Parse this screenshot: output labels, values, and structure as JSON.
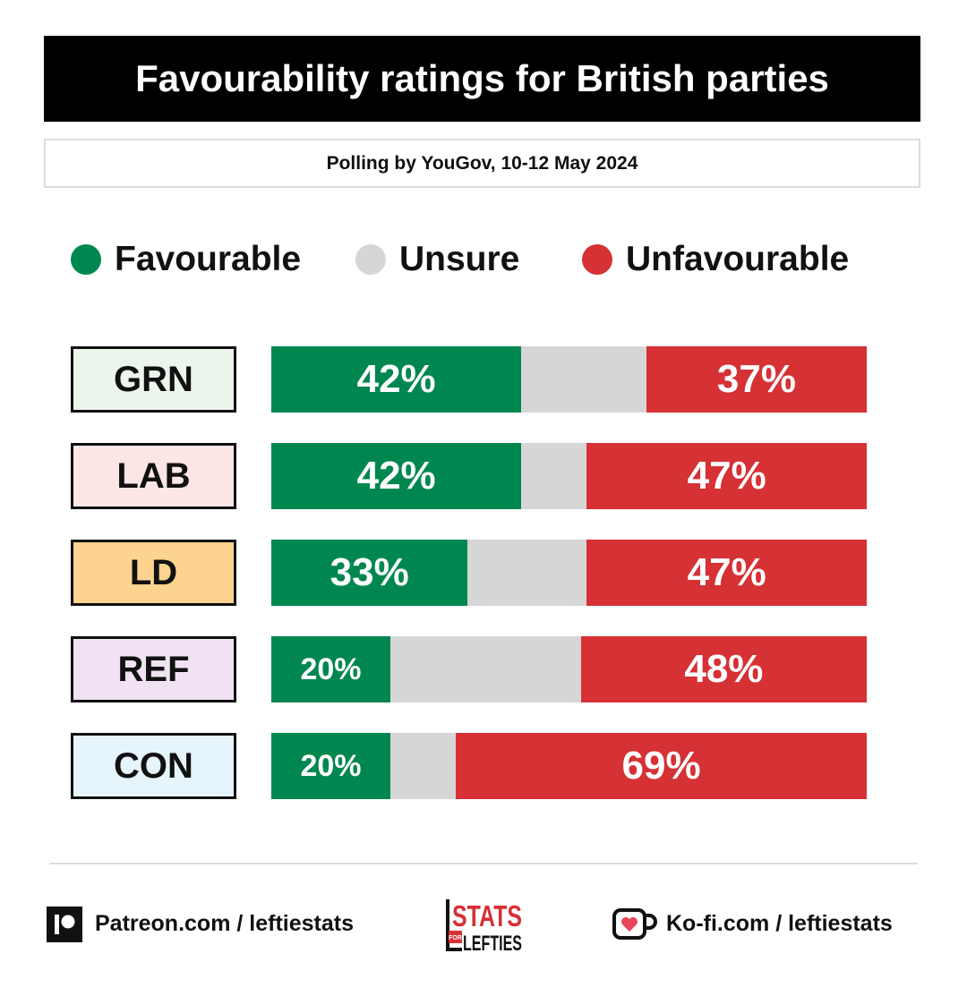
{
  "chart_data": {
    "type": "bar",
    "stacked": true,
    "orientation": "horizontal",
    "title": "Favourability ratings for British parties",
    "subtitle": "Polling by YouGov, 10-12 May 2024",
    "categories": [
      "GRN",
      "LAB",
      "LD",
      "REF",
      "CON"
    ],
    "series": [
      {
        "name": "Favourable",
        "values": [
          42,
          42,
          33,
          20,
          20
        ],
        "color": "#00874f"
      },
      {
        "name": "Unsure",
        "values": [
          21,
          11,
          20,
          32,
          11
        ],
        "color": "#d6d6d6"
      },
      {
        "name": "Unfavourable",
        "values": [
          37,
          47,
          47,
          48,
          69
        ],
        "color": "#d63135"
      }
    ],
    "data_labels": {
      "Favourable": [
        "42%",
        "42%",
        "33%",
        "20%",
        "20%"
      ],
      "Unfavourable": [
        "37%",
        "47%",
        "47%",
        "48%",
        "69%"
      ]
    },
    "category_colors": [
      "#ecf5ec",
      "#fde6e6",
      "#fcd38f",
      "#f1e2f3",
      "#e6f4fb"
    ],
    "xlim": [
      0,
      100
    ],
    "legend": "top",
    "grid": false
  },
  "footer": {
    "patreon_text": "Patreon.com / leftiestats",
    "kofi_text": "Ko-fi.com / leftiestats",
    "logo_lines": [
      "STATS",
      "FOR",
      "LEFTIES"
    ],
    "icons": [
      "patreon-icon",
      "stats-for-lefties-logo",
      "kofi-cup-icon"
    ]
  }
}
